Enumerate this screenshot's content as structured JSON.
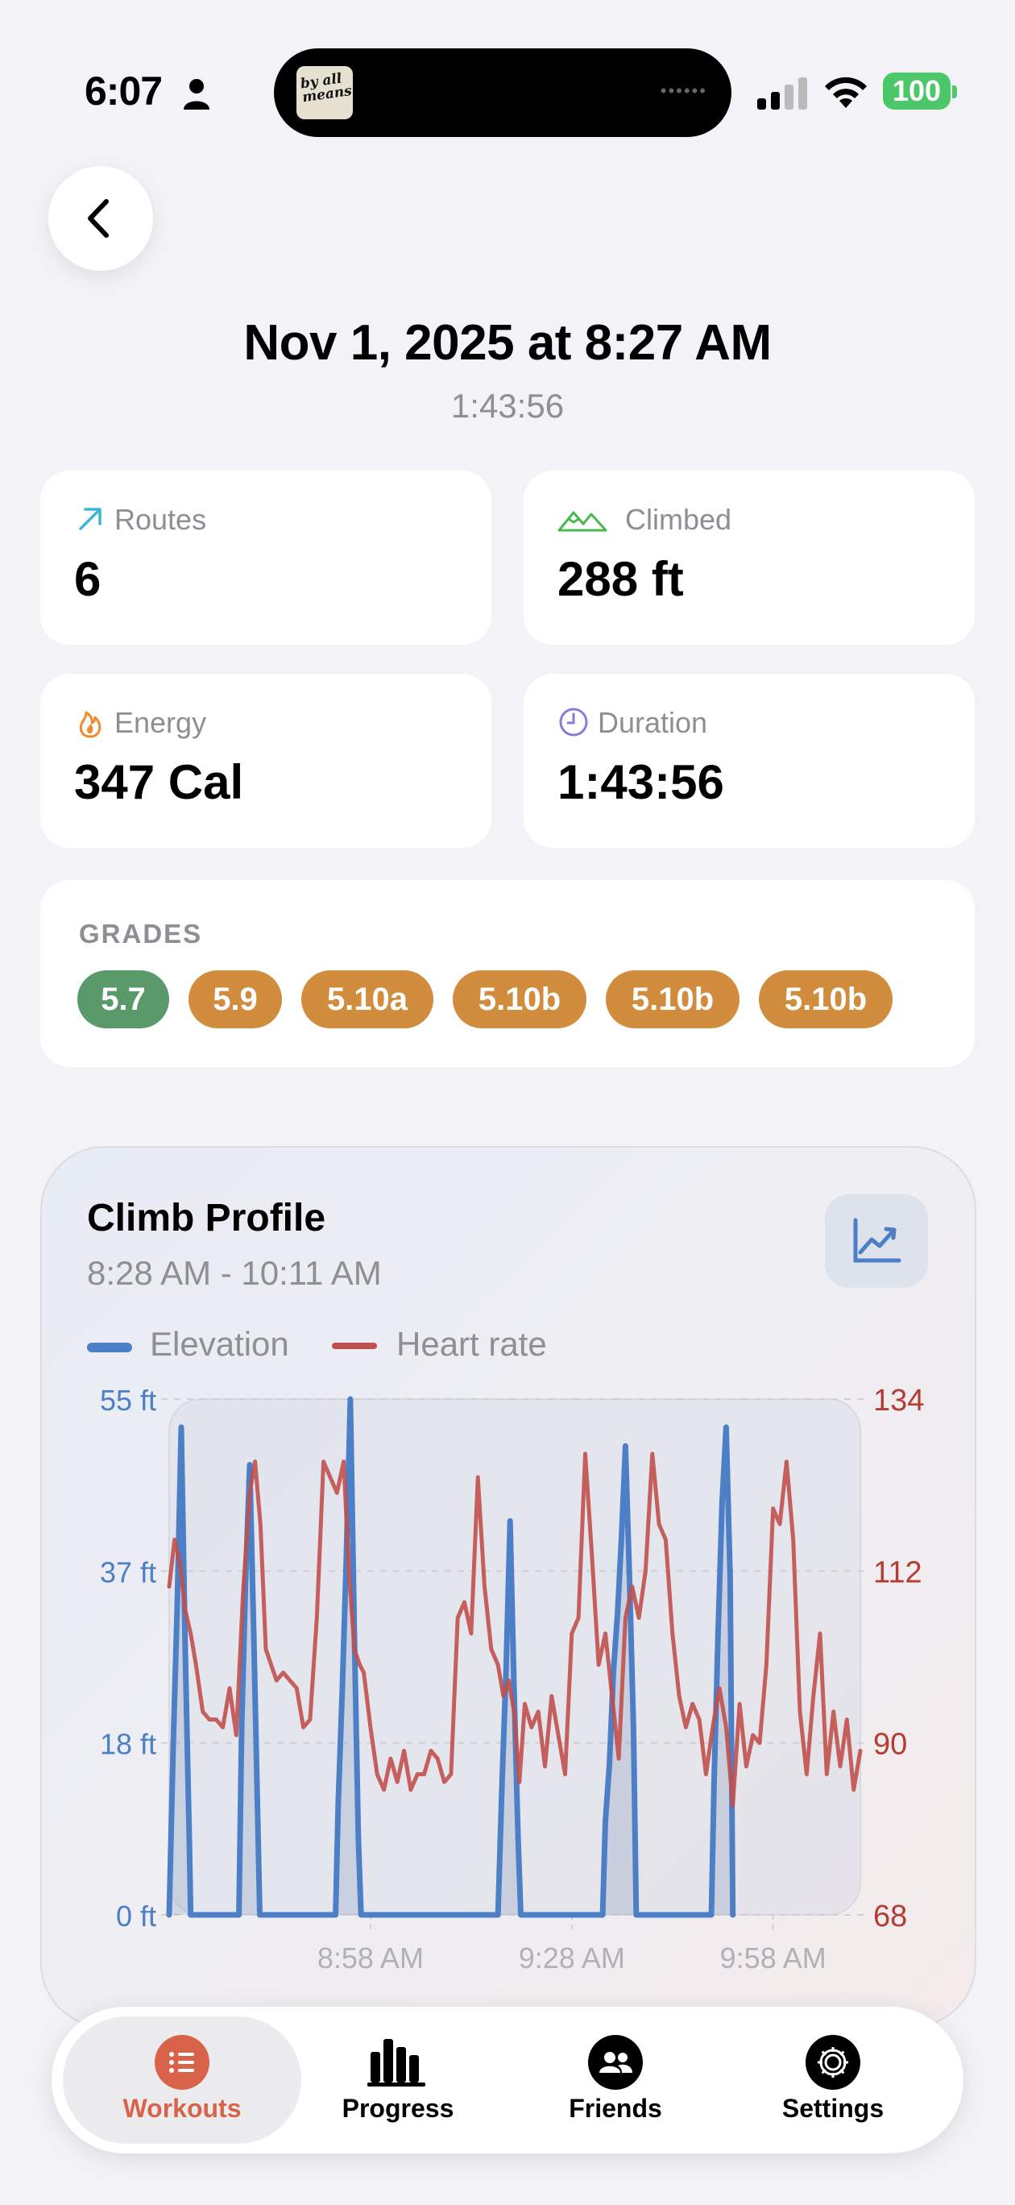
{
  "status_bar": {
    "time": "6:07",
    "battery": "100",
    "island_art_text": "by all means",
    "icons": [
      "person-icon",
      "signal-icon",
      "wifi-icon",
      "battery-icon"
    ]
  },
  "header": {
    "back_icon": "chevron-left-icon",
    "title": "Nov 1, 2025 at 8:27 AM",
    "subtitle": "1:43:56"
  },
  "stats": [
    {
      "label": "Routes",
      "value": "6",
      "icon": "arrow-up-right-icon",
      "color": "#3ab7d6"
    },
    {
      "label": "Climbed",
      "value": "288 ft",
      "icon": "mountains-icon",
      "color": "#49b94f"
    },
    {
      "label": "Energy",
      "value": "347 Cal",
      "icon": "flame-icon",
      "color": "#f08a2c"
    },
    {
      "label": "Duration",
      "value": "1:43:56",
      "icon": "clock-icon",
      "color": "#8a7bd6"
    }
  ],
  "grades": {
    "label": "GRADES",
    "items": [
      {
        "grade": "5.7",
        "color": "#5a9a6a"
      },
      {
        "grade": "5.9",
        "color": "#d18c3d"
      },
      {
        "grade": "5.10a",
        "color": "#d18c3d"
      },
      {
        "grade": "5.10b",
        "color": "#d18c3d"
      },
      {
        "grade": "5.10b",
        "color": "#d18c3d"
      },
      {
        "grade": "5.10b",
        "color": "#d18c3d"
      }
    ]
  },
  "climb_profile": {
    "title": "Climb Profile",
    "range": "8:28 AM - 10:11 AM",
    "button_icon": "chart-line-icon",
    "legend": [
      {
        "name": "Elevation",
        "color": "#4d7fc6"
      },
      {
        "name": "Heart rate",
        "color": "#c0504d"
      }
    ]
  },
  "chart_data": {
    "type": "line",
    "x_ticks": [
      "8:58 AM",
      "9:28 AM",
      "9:58 AM"
    ],
    "y_left_ticks": [
      "0 ft",
      "18 ft",
      "37 ft",
      "55 ft"
    ],
    "y_right_ticks": [
      "68",
      "90",
      "112",
      "134"
    ],
    "y_left_range": [
      0,
      55
    ],
    "y_right_range": [
      68,
      134
    ],
    "x_range_minutes": [
      0,
      103
    ],
    "series": [
      {
        "name": "Elevation",
        "axis": "left",
        "x": [
          0,
          0.6,
          1.2,
          1.8,
          2.4,
          3.0,
          3.2,
          10.4,
          10.8,
          11.4,
          12.0,
          12.6,
          13.2,
          13.5,
          24.8,
          25.2,
          25.8,
          26.4,
          27.0,
          27.6,
          28.2,
          28.6,
          49.0,
          49.6,
          50.2,
          50.8,
          51.4,
          52.0,
          52.4,
          64.6,
          65.0,
          65.6,
          66.2,
          66.8,
          67.4,
          68.0,
          68.6,
          69.2,
          69.6,
          80.8,
          81.2,
          81.8,
          82.4,
          83.0,
          83.6,
          84.0
        ],
        "y": [
          0,
          18,
          33,
          52,
          28,
          8,
          0,
          0,
          20,
          36,
          48,
          30,
          10,
          0,
          0,
          12,
          24,
          38,
          55,
          30,
          8,
          0,
          0,
          14,
          26,
          42,
          24,
          8,
          0,
          0,
          10,
          16,
          26,
          32,
          40,
          50,
          36,
          20,
          0,
          0,
          14,
          30,
          44,
          52,
          36,
          0
        ]
      },
      {
        "name": "Heart rate",
        "axis": "right",
        "x": [
          0,
          0.8,
          1.6,
          2.4,
          3.2,
          4.0,
          5.0,
          6.0,
          7.0,
          8.0,
          9.0,
          10.0,
          11.0,
          12.0,
          12.8,
          13.6,
          14.4,
          15.2,
          16.0,
          17.0,
          18.0,
          19.0,
          20.0,
          21.0,
          22.0,
          23.0,
          24.0,
          25.0,
          26.0,
          26.8,
          27.6,
          28.4,
          29.0,
          30.0,
          31.0,
          32.0,
          33.0,
          34.0,
          35.0,
          36.0,
          37.0,
          38.0,
          39.0,
          40.0,
          41.0,
          42.0,
          43.0,
          44.0,
          45.0,
          46.0,
          47.0,
          48.0,
          49.0,
          49.8,
          50.6,
          51.4,
          52.2,
          53.0,
          54.0,
          55.0,
          56.0,
          57.0,
          58.0,
          59.0,
          60.0,
          61.0,
          62.0,
          63.0,
          64.0,
          65.0,
          66.0,
          67.0,
          68.0,
          69.0,
          70.0,
          71.0,
          72.0,
          73.0,
          74.0,
          75.0,
          76.0,
          77.0,
          78.0,
          79.0,
          80.0,
          81.0,
          82.0,
          83.0,
          84.0,
          85.0,
          86.0,
          87.0,
          88.0,
          89.0,
          90.0,
          91.0,
          92.0,
          93.0,
          94.0,
          95.0,
          96.0,
          97.0,
          98.0,
          99.0,
          100.0,
          101.0,
          102.0,
          103.0
        ],
        "y": [
          110,
          116,
          113,
          107,
          104,
          100,
          94,
          93,
          93,
          92,
          97,
          91,
          109,
          122,
          126,
          118,
          102,
          100,
          98,
          99,
          98,
          97,
          92,
          93,
          106,
          126,
          124,
          122,
          126,
          112,
          102,
          100,
          99,
          92,
          86,
          84,
          88,
          85,
          89,
          84,
          86,
          86,
          89,
          88,
          85,
          86,
          106,
          108,
          104,
          124,
          110,
          102,
          100,
          96,
          98,
          94,
          85,
          95,
          92,
          94,
          87,
          96,
          91,
          86,
          104,
          106,
          127,
          114,
          100,
          104,
          96,
          88,
          106,
          110,
          106,
          112,
          127,
          118,
          116,
          104,
          96,
          92,
          95,
          93,
          86,
          92,
          97,
          92,
          82,
          95,
          87,
          91,
          90,
          100,
          120,
          118,
          126,
          116,
          94,
          86,
          96,
          104,
          86,
          94,
          87,
          93,
          84,
          89
        ]
      }
    ]
  },
  "tabbar": {
    "tabs": [
      {
        "label": "Workouts",
        "icon": "list-icon",
        "active": true
      },
      {
        "label": "Progress",
        "icon": "bar-chart-icon",
        "active": false
      },
      {
        "label": "Friends",
        "icon": "people-icon",
        "active": false
      },
      {
        "label": "Settings",
        "icon": "gear-icon",
        "active": false
      }
    ],
    "accent": "#d9634a"
  }
}
